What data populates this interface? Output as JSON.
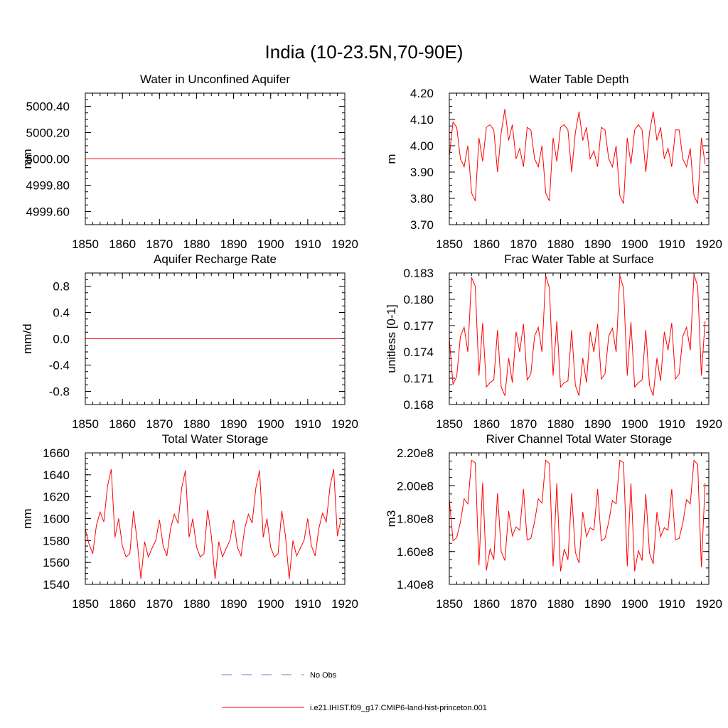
{
  "page_title": "India (10-23.5N,70-90E)",
  "legend": {
    "entries": [
      {
        "label": "No Obs",
        "color": "#7777cc",
        "style": "dashed"
      },
      {
        "label": "i.e21.IHIST.f09_g17.CMIP6-land-hist-princeton.001",
        "color": "#ff0000",
        "style": "solid"
      }
    ]
  },
  "chart_data": [
    {
      "type": "line",
      "title": "Water in Unconfined Aquifer",
      "xlabel": "",
      "ylabel": "mm",
      "xlim": [
        1850,
        1920
      ],
      "ylim": [
        4999.5,
        5000.5
      ],
      "xticks": [
        "1850",
        "1860",
        "1870",
        "1880",
        "1890",
        "1900",
        "1910",
        "1920"
      ],
      "yticks": [
        "4999.60",
        "4999.80",
        "5000.00",
        "5000.20",
        "5000.40"
      ],
      "series": [
        {
          "color": "#ff0000",
          "x": [
            1850,
            1919
          ],
          "y": [
            5000.0,
            5000.0
          ]
        }
      ]
    },
    {
      "type": "line",
      "title": "Water Table Depth",
      "xlabel": "",
      "ylabel": "m",
      "xlim": [
        1850,
        1920
      ],
      "ylim": [
        3.7,
        4.2
      ],
      "xticks": [
        "1850",
        "1860",
        "1870",
        "1880",
        "1890",
        "1900",
        "1910",
        "1920"
      ],
      "yticks": [
        "3.70",
        "3.80",
        "3.90",
        "4.00",
        "4.10",
        "4.20"
      ],
      "series": [
        {
          "color": "#ff0000",
          "x0": 1850,
          "y": [
            3.96,
            4.09,
            4.07,
            3.95,
            3.92,
            4.0,
            3.82,
            3.79,
            4.03,
            3.94,
            4.07,
            4.08,
            4.06,
            3.9,
            4.05,
            4.14,
            4.02,
            4.08,
            3.95,
            3.99,
            3.92,
            4.07,
            4.06,
            3.95,
            3.92,
            4.0,
            3.82,
            3.79,
            4.03,
            3.94,
            4.07,
            4.08,
            4.06,
            3.9,
            4.05,
            4.13,
            4.02,
            4.07,
            3.95,
            3.98,
            3.92,
            4.07,
            4.06,
            3.95,
            3.92,
            4.0,
            3.81,
            3.78,
            4.03,
            3.93,
            4.06,
            4.08,
            4.06,
            3.9,
            4.05,
            4.13,
            4.02,
            4.07,
            3.95,
            3.99,
            3.92,
            4.06,
            4.06,
            3.95,
            3.92,
            3.99,
            3.81,
            3.78,
            4.03,
            3.93
          ]
        }
      ]
    },
    {
      "type": "line",
      "title": "Aquifer Recharge Rate",
      "xlabel": "",
      "ylabel": "mm/d",
      "xlim": [
        1850,
        1920
      ],
      "ylim": [
        -1.0,
        1.0
      ],
      "xticks": [
        "1850",
        "1860",
        "1870",
        "1880",
        "1890",
        "1900",
        "1910",
        "1920"
      ],
      "yticks": [
        "-0.8",
        "-0.4",
        "0.0",
        "0.4",
        "0.8"
      ],
      "series": [
        {
          "color": "#ff0000",
          "x": [
            1850,
            1919
          ],
          "y": [
            0.0,
            0.0
          ]
        }
      ]
    },
    {
      "type": "line",
      "title": "Frac Water Table at Surface",
      "xlabel": "",
      "ylabel": "unitless [0-1]",
      "xlim": [
        1850,
        1920
      ],
      "ylim": [
        0.168,
        0.183
      ],
      "xticks": [
        "1850",
        "1860",
        "1870",
        "1880",
        "1890",
        "1900",
        "1910",
        "1920"
      ],
      "yticks": [
        "0.168",
        "0.171",
        "0.174",
        "0.177",
        "0.180",
        "0.183"
      ],
      "series": [
        {
          "color": "#ff0000",
          "x0": 1850,
          "y": [
            0.1755,
            0.1703,
            0.1712,
            0.1758,
            0.1768,
            0.174,
            0.1825,
            0.1815,
            0.1713,
            0.1773,
            0.17,
            0.1705,
            0.1708,
            0.1765,
            0.17,
            0.169,
            0.1733,
            0.1705,
            0.1763,
            0.174,
            0.1772,
            0.1708,
            0.1715,
            0.1758,
            0.1768,
            0.174,
            0.1827,
            0.1813,
            0.1713,
            0.1775,
            0.17,
            0.1705,
            0.1707,
            0.1765,
            0.1702,
            0.169,
            0.1733,
            0.1705,
            0.1763,
            0.174,
            0.1772,
            0.1709,
            0.1715,
            0.1758,
            0.1767,
            0.174,
            0.1827,
            0.1813,
            0.1713,
            0.1774,
            0.17,
            0.1705,
            0.1708,
            0.1765,
            0.1702,
            0.169,
            0.1733,
            0.1707,
            0.1763,
            0.1742,
            0.1773,
            0.1709,
            0.1715,
            0.1758,
            0.1768,
            0.1742,
            0.1828,
            0.1815,
            0.1713,
            0.1775
          ]
        }
      ]
    },
    {
      "type": "line",
      "title": "Total Water Storage",
      "xlabel": "",
      "ylabel": "mm",
      "xlim": [
        1850,
        1920
      ],
      "ylim": [
        1540,
        1660
      ],
      "xticks": [
        "1850",
        "1860",
        "1870",
        "1880",
        "1890",
        "1900",
        "1910",
        "1920"
      ],
      "yticks": [
        "1540",
        "1560",
        "1580",
        "1600",
        "1620",
        "1640",
        "1660"
      ],
      "series": [
        {
          "color": "#ff0000",
          "x0": 1850,
          "y": [
            1590,
            1577,
            1568,
            1594,
            1606,
            1597,
            1630,
            1645,
            1583,
            1600,
            1575,
            1565,
            1568,
            1607,
            1579,
            1545,
            1579,
            1565,
            1573,
            1580,
            1599,
            1575,
            1566,
            1591,
            1604,
            1596,
            1628,
            1644,
            1583,
            1600,
            1574,
            1565,
            1568,
            1608,
            1584,
            1545,
            1579,
            1565,
            1573,
            1580,
            1599,
            1574,
            1566,
            1591,
            1604,
            1596,
            1628,
            1644,
            1583,
            1600,
            1574,
            1565,
            1568,
            1607,
            1584,
            1545,
            1580,
            1566,
            1573,
            1580,
            1600,
            1575,
            1566,
            1591,
            1605,
            1597,
            1629,
            1645,
            1584,
            1600
          ]
        }
      ]
    },
    {
      "type": "line",
      "title": "River Channel Total Water Storage",
      "xlabel": "",
      "ylabel": "m3",
      "xlim": [
        1850,
        1920
      ],
      "ylim": [
        140000000.0,
        220000000.0
      ],
      "xticks": [
        "1850",
        "1860",
        "1870",
        "1880",
        "1890",
        "1900",
        "1910",
        "1920"
      ],
      "yticks": [
        "1.40e8",
        "1.60e8",
        "1.80e8",
        "2.00e8",
        "2.20e8"
      ],
      "series": [
        {
          "color": "#ff0000",
          "x0": 1850,
          "y": [
            192000000.0,
            166500000.0,
            168500000.0,
            178000000.0,
            192000000.0,
            189000000.0,
            215500000.0,
            214000000.0,
            151500000.0,
            202000000.0,
            148500000.0,
            161500000.0,
            155000000.0,
            195500000.0,
            160000000.0,
            154500000.0,
            184500000.0,
            169500000.0,
            175000000.0,
            173000000.0,
            198000000.0,
            167000000.0,
            168000000.0,
            178000000.0,
            192000000.0,
            189500000.0,
            215500000.0,
            213500000.0,
            151000000.0,
            201500000.0,
            148000000.0,
            161500000.0,
            155000000.0,
            195500000.0,
            159500000.0,
            153000000.0,
            184000000.0,
            169000000.0,
            174500000.0,
            173000000.0,
            198000000.0,
            166500000.0,
            168000000.0,
            178000000.0,
            191000000.0,
            189000000.0,
            215500000.0,
            214000000.0,
            151000000.0,
            201500000.0,
            148000000.0,
            160500000.0,
            154500000.0,
            195000000.0,
            159000000.0,
            152500000.0,
            184000000.0,
            169000000.0,
            174500000.0,
            173000000.0,
            198000000.0,
            167000000.0,
            168000000.0,
            177500000.0,
            191500000.0,
            189000000.0,
            215500000.0,
            213000000.0,
            150500000.0,
            201500000.0
          ]
        }
      ]
    }
  ]
}
